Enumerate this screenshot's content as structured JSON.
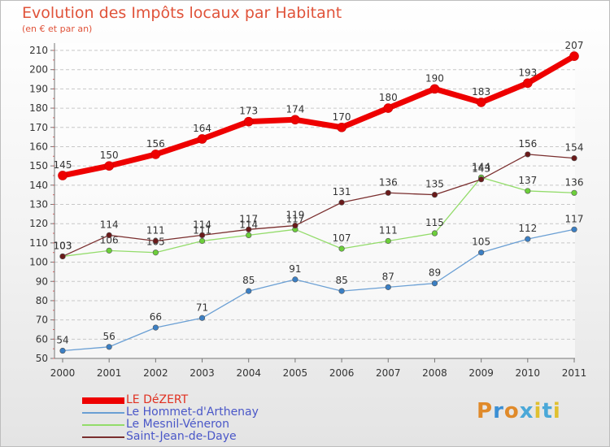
{
  "chart_data": {
    "type": "line",
    "title": "Evolution des Impôts locaux par Habitant",
    "subtitle": "(en € et par an)",
    "categories": [
      "2000",
      "2001",
      "2002",
      "2003",
      "2004",
      "2005",
      "2006",
      "2007",
      "2008",
      "2009",
      "2010",
      "2011"
    ],
    "y_ticks": [
      "50",
      "60",
      "70",
      "80",
      "90",
      "100",
      "110",
      "120",
      "130",
      "140",
      "150",
      "160",
      "170",
      "180",
      "190",
      "200",
      "210"
    ],
    "ylim": [
      50,
      210
    ],
    "grid": "horizontal dashed",
    "legend_position": "bottom-left",
    "series": [
      {
        "name": "LE DéZERT",
        "color": "#ee0000",
        "marker": "#ee0000",
        "width": 7,
        "values": [
          145,
          150,
          156,
          164,
          173,
          174,
          170,
          180,
          190,
          183,
          193,
          207
        ]
      },
      {
        "name": "Le Hommet-d'Arthenay",
        "color": "#6a9fd4",
        "marker": "#3b7fc4",
        "width": 1.3,
        "values": [
          54,
          56,
          66,
          71,
          85,
          91,
          85,
          87,
          89,
          105,
          112,
          117
        ]
      },
      {
        "name": "Le Mesnil-Véneron",
        "color": "#93dc6a",
        "marker": "#6ccf3a",
        "width": 1.3,
        "values": [
          103,
          106,
          105,
          111,
          114,
          117,
          107,
          111,
          115,
          144,
          137,
          136
        ]
      },
      {
        "name": "Saint-Jean-de-Daye",
        "color": "#7a2e2e",
        "marker": "#6a1a1a",
        "width": 1.3,
        "values": [
          103,
          114,
          111,
          114,
          117,
          119,
          131,
          136,
          135,
          143,
          156,
          154
        ]
      }
    ]
  },
  "brand": {
    "letters": [
      "P",
      "r",
      "o",
      "x",
      "i",
      "t",
      "i"
    ],
    "colors": [
      "#e08a2a",
      "#3b8fd4",
      "#e08a2a",
      "#4aa8d8",
      "#e0c030",
      "#4aa8d8",
      "#e0c030"
    ]
  }
}
